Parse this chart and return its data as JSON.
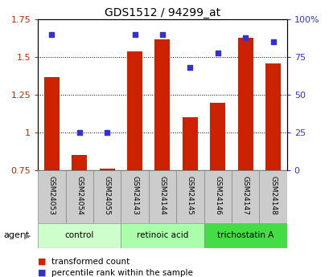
{
  "title": "GDS1512 / 94299_at",
  "samples": [
    "GSM24053",
    "GSM24054",
    "GSM24055",
    "GSM24143",
    "GSM24144",
    "GSM24145",
    "GSM24146",
    "GSM24147",
    "GSM24148"
  ],
  "bar_values": [
    1.37,
    0.85,
    0.76,
    1.54,
    1.62,
    1.1,
    1.2,
    1.63,
    1.46
  ],
  "dot_values_pct": [
    90,
    25,
    25,
    90,
    90,
    68,
    78,
    88,
    85
  ],
  "bar_color": "#CC2200",
  "dot_color": "#3333CC",
  "bar_bottom": 0.75,
  "ylim_left": [
    0.75,
    1.75
  ],
  "ylim_right": [
    0,
    100
  ],
  "yticks_left": [
    0.75,
    1.0,
    1.25,
    1.5,
    1.75
  ],
  "ytick_labels_left": [
    "0.75",
    "1",
    "1.25",
    "1.5",
    "1.75"
  ],
  "yticks_right": [
    0,
    25,
    50,
    75,
    100
  ],
  "ytick_labels_right": [
    "0",
    "25",
    "50",
    "75",
    "100%"
  ],
  "groups": [
    {
      "label": "control",
      "start": 0,
      "end": 3,
      "color": "#ccffcc"
    },
    {
      "label": "retinoic acid",
      "start": 3,
      "end": 6,
      "color": "#aaffaa"
    },
    {
      "label": "trichostatin A",
      "start": 6,
      "end": 9,
      "color": "#44dd44"
    }
  ],
  "agent_label": "agent",
  "legend_bar_label": "transformed count",
  "legend_dot_label": "percentile rank within the sample",
  "bg_color": "#ffffff",
  "plot_bg": "#ffffff",
  "ylabel_left_color": "#CC2200",
  "ylabel_right_color": "#3333CC",
  "sample_box_color": "#cccccc",
  "bar_width": 0.55
}
